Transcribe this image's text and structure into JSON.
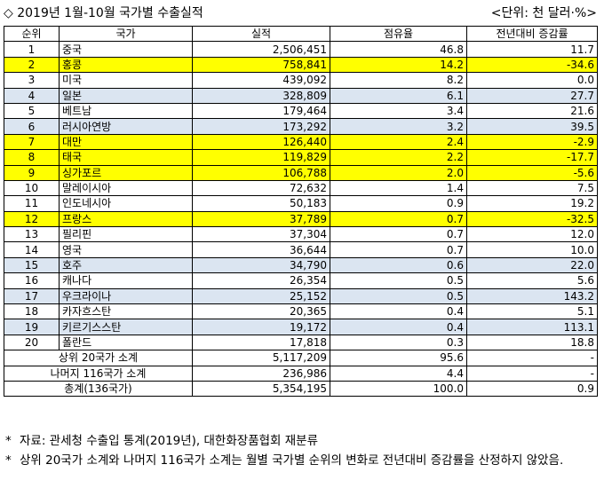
{
  "header": {
    "title": "◇ 2019년 1월-10월 국가별 수출실적",
    "unit": "<단위: 천 달러·%>"
  },
  "columns": [
    "순위",
    "국가",
    "실적",
    "점유율",
    "전년대비 증감률"
  ],
  "rows": [
    {
      "rank": "1",
      "country": "중국",
      "amount": "2,506,451",
      "share": "46.8",
      "change": "11.7",
      "highlight": "none"
    },
    {
      "rank": "2",
      "country": "홍콩",
      "amount": "758,841",
      "share": "14.2",
      "change": "-34.6",
      "highlight": "yellow"
    },
    {
      "rank": "3",
      "country": "미국",
      "amount": "439,092",
      "share": "8.2",
      "change": "0.0",
      "highlight": "none"
    },
    {
      "rank": "4",
      "country": "일본",
      "amount": "328,809",
      "share": "6.1",
      "change": "27.7",
      "highlight": "blue"
    },
    {
      "rank": "5",
      "country": "베트남",
      "amount": "179,464",
      "share": "3.4",
      "change": "21.6",
      "highlight": "none"
    },
    {
      "rank": "6",
      "country": "러시아연방",
      "amount": "173,292",
      "share": "3.2",
      "change": "39.5",
      "highlight": "blue"
    },
    {
      "rank": "7",
      "country": "대만",
      "amount": "126,440",
      "share": "2.4",
      "change": "-2.9",
      "highlight": "yellow"
    },
    {
      "rank": "8",
      "country": "태국",
      "amount": "119,829",
      "share": "2.2",
      "change": "-17.7",
      "highlight": "yellow"
    },
    {
      "rank": "9",
      "country": "싱가포르",
      "amount": "106,788",
      "share": "2.0",
      "change": "-5.6",
      "highlight": "yellow"
    },
    {
      "rank": "10",
      "country": "말레이시아",
      "amount": "72,632",
      "share": "1.4",
      "change": "7.5",
      "highlight": "none"
    },
    {
      "rank": "11",
      "country": "인도네시아",
      "amount": "50,183",
      "share": "0.9",
      "change": "19.2",
      "highlight": "none"
    },
    {
      "rank": "12",
      "country": "프랑스",
      "amount": "37,789",
      "share": "0.7",
      "change": "-32.5",
      "highlight": "yellow"
    },
    {
      "rank": "13",
      "country": "필리핀",
      "amount": "37,304",
      "share": "0.7",
      "change": "12.0",
      "highlight": "none"
    },
    {
      "rank": "14",
      "country": "영국",
      "amount": "36,644",
      "share": "0.7",
      "change": "10.0",
      "highlight": "none"
    },
    {
      "rank": "15",
      "country": "호주",
      "amount": "34,790",
      "share": "0.6",
      "change": "22.0",
      "highlight": "blue"
    },
    {
      "rank": "16",
      "country": "캐나다",
      "amount": "26,354",
      "share": "0.5",
      "change": "5.6",
      "highlight": "none"
    },
    {
      "rank": "17",
      "country": "우크라이나",
      "amount": "25,152",
      "share": "0.5",
      "change": "143.2",
      "highlight": "blue"
    },
    {
      "rank": "18",
      "country": "카자흐스탄",
      "amount": "20,365",
      "share": "0.4",
      "change": "5.1",
      "highlight": "none"
    },
    {
      "rank": "19",
      "country": "키르기스스탄",
      "amount": "19,172",
      "share": "0.4",
      "change": "113.1",
      "highlight": "blue"
    },
    {
      "rank": "20",
      "country": "폴란드",
      "amount": "17,818",
      "share": "0.3",
      "change": "18.8",
      "highlight": "none"
    }
  ],
  "summary": [
    {
      "label": "상위 20국가 소계",
      "amount": "5,117,209",
      "share": "95.6",
      "change": "-"
    },
    {
      "label": "나머지 116국가 소계",
      "amount": "236,986",
      "share": "4.4",
      "change": "-"
    },
    {
      "label": "총계(136국가)",
      "amount": "5,354,195",
      "share": "100.0",
      "change": "0.9"
    }
  ],
  "notes": [
    {
      "star": "*",
      "text": "자료: 관세청 수출입 통계(2019년), 대한화장품협회 재분류"
    },
    {
      "star": "*",
      "text": "상위 20국가 소계와 나머지 116국가 소계는 월별 국가별 순위의 변화로 전년대비 증감률을 산정하지 않았음."
    }
  ],
  "colors": {
    "yellow": "#ffff00",
    "blue": "#dbe5f1"
  }
}
